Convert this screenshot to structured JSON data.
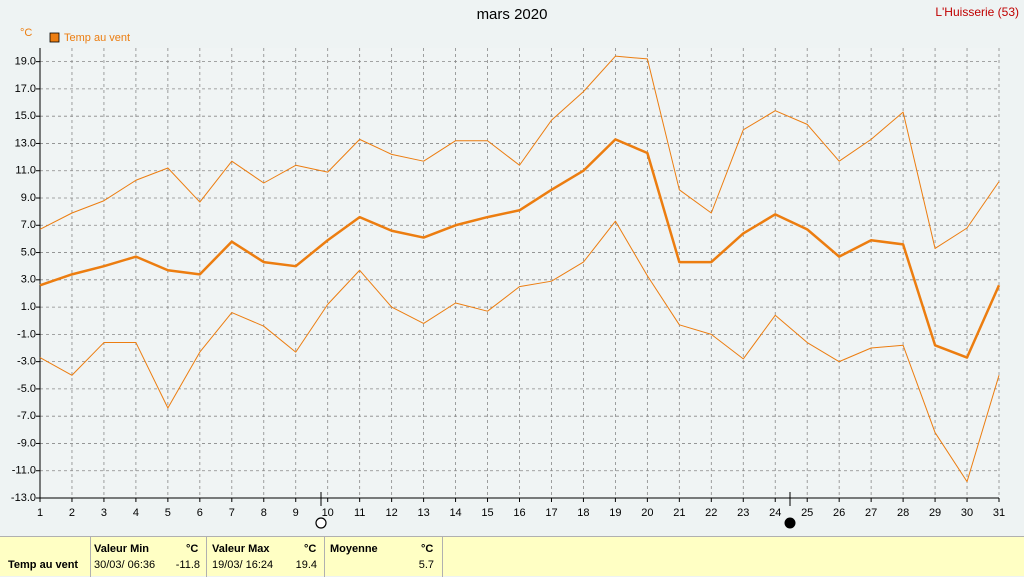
{
  "chart_data": {
    "type": "line",
    "title": "mars 2020",
    "location": "L'Huisserie (53)",
    "unit": "°C",
    "x": [
      1,
      2,
      3,
      4,
      5,
      6,
      7,
      8,
      9,
      10,
      11,
      12,
      13,
      14,
      15,
      16,
      17,
      18,
      19,
      20,
      21,
      22,
      23,
      24,
      25,
      26,
      27,
      28,
      29,
      30,
      31
    ],
    "xlim": [
      1,
      31
    ],
    "xticks": [
      1,
      2,
      3,
      4,
      5,
      6,
      7,
      8,
      9,
      10,
      11,
      12,
      13,
      14,
      15,
      16,
      17,
      18,
      19,
      20,
      21,
      22,
      23,
      24,
      25,
      26,
      27,
      28,
      29,
      30,
      31
    ],
    "ylim": [
      -13,
      20
    ],
    "yticks": [
      {
        "value": -13,
        "label": "-13.0"
      },
      {
        "value": -11,
        "label": "-11.0"
      },
      {
        "value": -9,
        "label": "-9.0"
      },
      {
        "value": -7,
        "label": "-7.0"
      },
      {
        "value": -5,
        "label": "-5.0"
      },
      {
        "value": -3,
        "label": "-3.0"
      },
      {
        "value": -1,
        "label": "-1.0"
      },
      {
        "value": 1,
        "label": "1.0"
      },
      {
        "value": 3,
        "label": "3.0"
      },
      {
        "value": 5,
        "label": "5.0"
      },
      {
        "value": 7,
        "label": "7.0"
      },
      {
        "value": 9,
        "label": "9.0"
      },
      {
        "value": 11,
        "label": "11.0"
      },
      {
        "value": 13,
        "label": "13.0"
      },
      {
        "value": 15,
        "label": "15.0"
      },
      {
        "value": 17,
        "label": "17.0"
      },
      {
        "value": 19,
        "label": "19.0"
      }
    ],
    "grid": true,
    "series": [
      {
        "name": "Temp au vent",
        "color": "#ec7d10",
        "values": [
          2.6,
          3.4,
          4.0,
          4.7,
          3.7,
          3.4,
          5.8,
          4.3,
          4.0,
          5.9,
          7.6,
          6.6,
          6.1,
          7.0,
          7.6,
          8.1,
          9.6,
          11.0,
          13.3,
          12.3,
          4.3,
          4.3,
          6.4,
          7.8,
          6.7,
          4.7,
          5.9,
          5.6,
          -1.8,
          -2.7,
          2.6
        ],
        "max": [
          6.7,
          7.9,
          8.8,
          10.3,
          11.2,
          8.7,
          11.7,
          10.1,
          11.4,
          10.9,
          13.3,
          12.2,
          11.7,
          13.2,
          13.2,
          11.4,
          14.7,
          16.8,
          19.4,
          19.2,
          9.6,
          7.9,
          14.0,
          15.4,
          14.4,
          11.7,
          13.3,
          15.3,
          5.3,
          6.8,
          10.2
        ],
        "min": [
          -2.7,
          -4.0,
          -1.6,
          -1.6,
          -6.4,
          -2.3,
          0.6,
          -0.4,
          -2.3,
          1.2,
          3.7,
          1.0,
          -0.2,
          1.3,
          0.7,
          2.5,
          2.9,
          4.3,
          7.3,
          3.3,
          -0.3,
          -1.0,
          -2.8,
          0.4,
          -1.6,
          -3.0,
          -2.0,
          -1.8,
          -8.2,
          -11.8,
          -4.0
        ]
      }
    ]
  },
  "summary": {
    "label": "Temp au vent",
    "min": {
      "title": "Valeur Min",
      "unit": "°C",
      "date": "30/03/ 06:36",
      "value": -11.8
    },
    "max": {
      "title": "Valeur Max",
      "unit": "°C",
      "date": "19/03/ 16:24",
      "value": 19.4
    },
    "mean": {
      "title": "Moyenne",
      "unit": "°C",
      "value": 5.7
    }
  }
}
